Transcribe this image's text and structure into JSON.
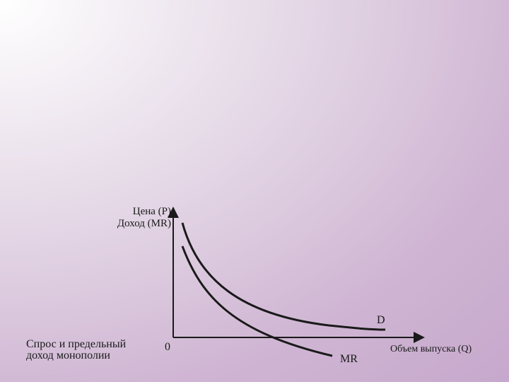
{
  "slide": {
    "caption_line1": "Спрос и предельный",
    "caption_line2": "доход монополии"
  },
  "axes": {
    "y_label_line1": "Цена (P)",
    "y_label_line2": "Доход (MR)",
    "x_label": "Объем выпуска (Q)",
    "origin": "0"
  },
  "curves": {
    "demand_label": "D",
    "mr_label": "MR",
    "line_color": "#1a1a1a"
  }
}
